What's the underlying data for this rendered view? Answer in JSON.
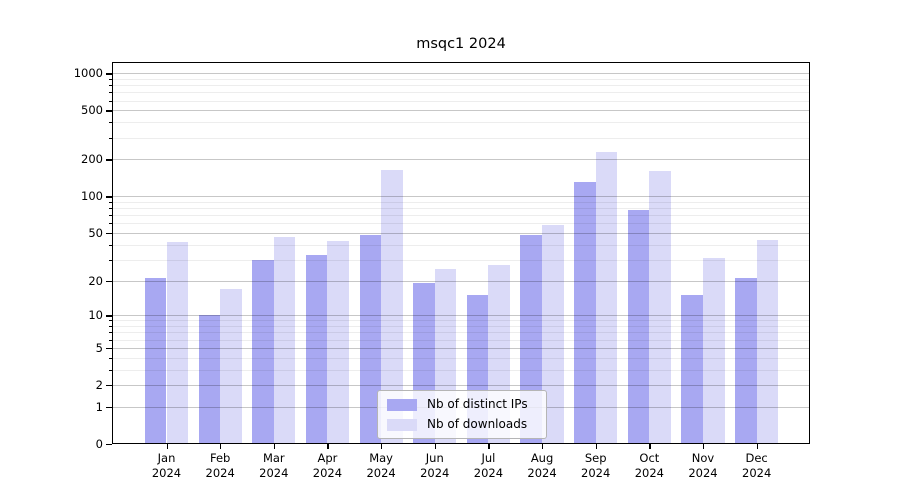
{
  "chart_data": {
    "type": "bar",
    "title": "msqc1 2024",
    "y_scale": "log1p",
    "grid": true,
    "legend_position": "lower center",
    "categories": [
      "Jan",
      "Feb",
      "Mar",
      "Apr",
      "May",
      "Jun",
      "Jul",
      "Aug",
      "Sep",
      "Oct",
      "Nov",
      "Dec"
    ],
    "x_year_label": "2024",
    "series": [
      {
        "name": "Nb of distinct IPs",
        "color": "#a8a8f2",
        "values": [
          21,
          10,
          30,
          33,
          48,
          19,
          15,
          48,
          132,
          78,
          15,
          21
        ]
      },
      {
        "name": "Nb of downloads",
        "color": "#dadaf8",
        "values": [
          42,
          17,
          46,
          43,
          165,
          25,
          27,
          58,
          228,
          160,
          31,
          44
        ]
      }
    ],
    "y_ticks": [
      0,
      1,
      2,
      5,
      10,
      20,
      50,
      100,
      200,
      500,
      1000
    ],
    "y_minor_gridlines": [
      3,
      4,
      6,
      7,
      8,
      9,
      30,
      40,
      60,
      70,
      80,
      90,
      300,
      400,
      600,
      700,
      800,
      900
    ],
    "ylim": [
      0,
      1235
    ]
  },
  "colors": {
    "bar_ips": "#a8a8f2",
    "bar_downloads": "#dadaf8",
    "grid_major": "rgba(0,0,0,0.22)",
    "grid_minor": "rgba(0,0,0,0.07)",
    "frame": "#000000",
    "legend_border": "#b5b5b5"
  }
}
